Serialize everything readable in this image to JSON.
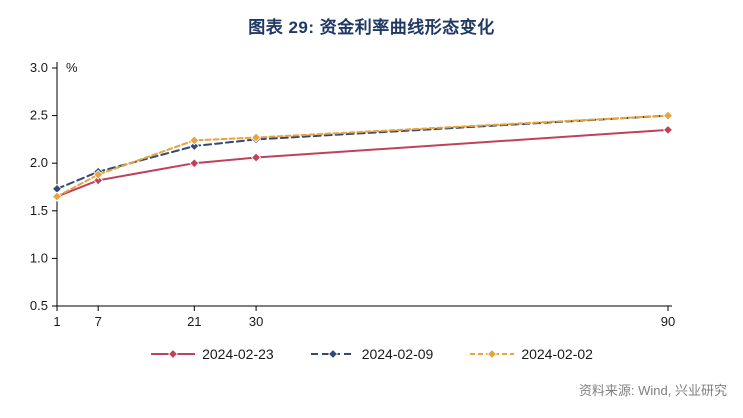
{
  "title": "图表 29: 资金利率曲线形态变化",
  "source": "资料来源: Wind, 兴业研究",
  "colors": {
    "title": "#1f3864",
    "axis": "#000000",
    "tick_label": "#1a1a1a",
    "source_text": "#808080"
  },
  "chart_data": {
    "type": "line",
    "x": [
      1,
      7,
      21,
      30,
      90
    ],
    "x_tick_labels": [
      "1",
      "7",
      "21",
      "30",
      "90"
    ],
    "xlim": [
      1,
      90
    ],
    "ylim": [
      0.5,
      3.0
    ],
    "y_ticks": [
      0.5,
      1.0,
      1.5,
      2.0,
      2.5,
      3.0
    ],
    "y_unit_label": "%",
    "grid": false,
    "legend_position": "bottom",
    "series": [
      {
        "name": "2024-02-23",
        "values": [
          1.65,
          1.82,
          2.0,
          2.06,
          2.35
        ],
        "color": "#c0415a",
        "line_style": "solid",
        "dasharray": "none",
        "marker": "diamond"
      },
      {
        "name": "2024-02-09",
        "values": [
          1.73,
          1.91,
          2.18,
          2.25,
          2.5
        ],
        "color": "#2e4a77",
        "line_style": "dashed",
        "dasharray": "7 4",
        "marker": "diamond"
      },
      {
        "name": "2024-02-02",
        "values": [
          1.65,
          1.88,
          2.24,
          2.27,
          2.5
        ],
        "color": "#e8a33d",
        "line_style": "dashed",
        "dasharray": "5 3",
        "marker": "diamond"
      }
    ]
  }
}
